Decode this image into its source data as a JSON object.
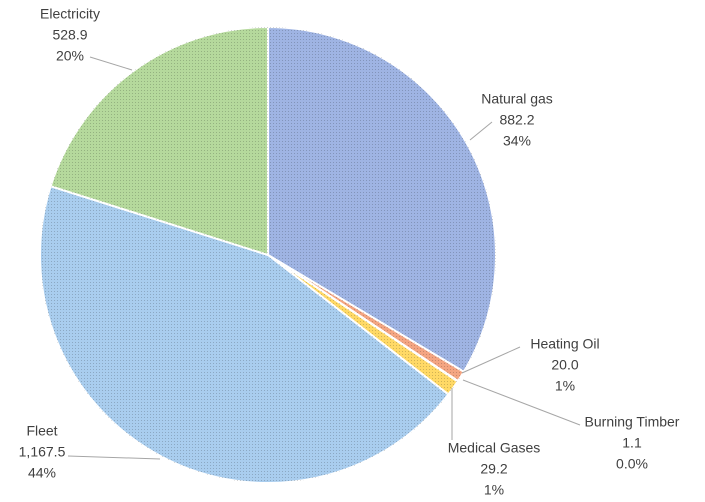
{
  "chart_data": {
    "type": "pie",
    "categories": [
      "Natural gas",
      "Heating Oil",
      "Burning Timber",
      "Medical Gases",
      "Fleet",
      "Electricity"
    ],
    "values": [
      882.2,
      20.0,
      1.1,
      29.2,
      1167.5,
      528.9
    ],
    "value_labels": [
      "882.2",
      "20.0",
      "1.1",
      "29.2",
      "1,167.5",
      "528.9"
    ],
    "percent_labels": [
      "34%",
      "1%",
      "0.0%",
      "1%",
      "44%",
      "20%"
    ],
    "colors": [
      "#9fb4e3",
      "#f4a582",
      "#a5a5a5",
      "#ffd966",
      "#a9cdee",
      "#b5d99c"
    ]
  }
}
